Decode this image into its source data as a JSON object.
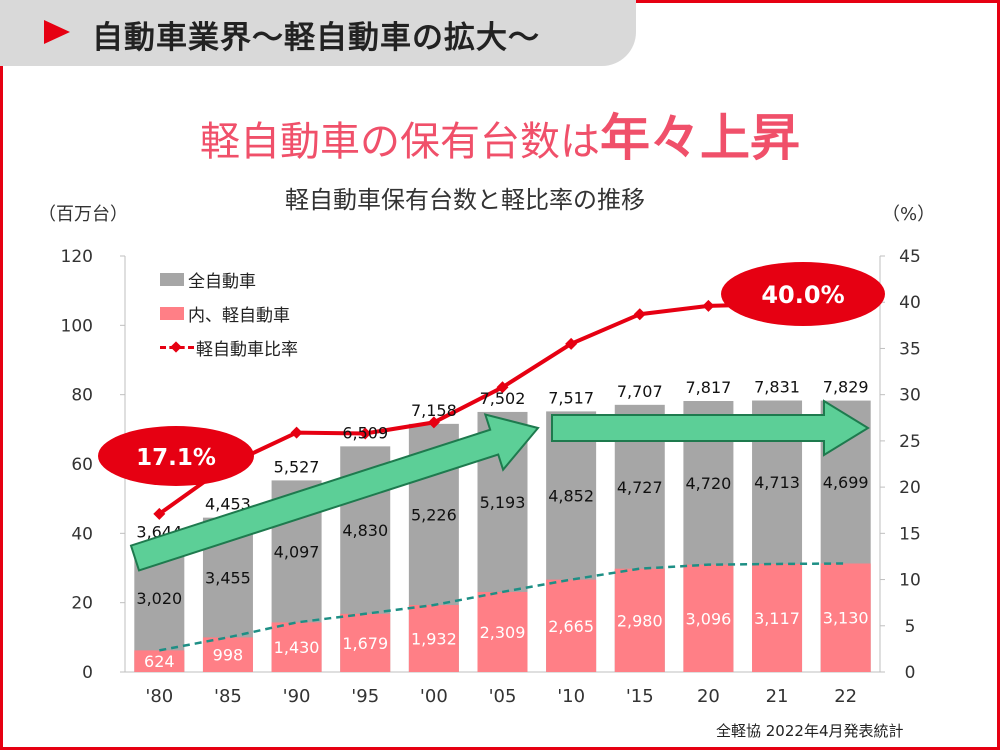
{
  "header": {
    "title": "自動車業界～軽自動車の拡大～"
  },
  "headline": {
    "part1": "軽自動車の保有台数は",
    "part2": "年々上昇"
  },
  "source_note": "全軽協 2022年4月発表統計",
  "colors": {
    "frame": "#e60012",
    "total_bar": "#a6a6a6",
    "kei_bar": "#ff7f86",
    "ratio_line": "#e60012",
    "trend_arrow_fill": "#5ccf97",
    "trend_arrow_stroke": "#1e7a4e",
    "kei_trend_line": "#1e8f85",
    "callout_fill": "#e60012"
  },
  "chart_data": {
    "type": "bar",
    "title": "軽自動車保有台数と軽比率の推移",
    "y_left_unit": "（百万台）",
    "y_right_unit": "（%）",
    "ylim": [
      0,
      120
    ],
    "y_left_ticks": [
      "0",
      "20",
      "40",
      "60",
      "80",
      "100",
      "120"
    ],
    "y2lim": [
      0,
      45
    ],
    "y_right_ticks": [
      "0",
      "5",
      "10",
      "15",
      "20",
      "25",
      "30",
      "35",
      "40",
      "45"
    ],
    "categories": [
      "'80",
      "'85",
      "'90",
      "'95",
      "'00",
      "'05",
      "'10",
      "'15",
      "20",
      "21",
      "22"
    ],
    "legend_position": "top-left",
    "series": [
      {
        "name": "全自動車",
        "kind": "bar",
        "axis": "left",
        "values": [
          36.44,
          44.53,
          55.27,
          65.09,
          71.58,
          75.02,
          75.17,
          77.07,
          78.17,
          78.31,
          78.29
        ],
        "labels": [
          "3,644",
          "4,453",
          "5,527",
          "6,509",
          "7,158",
          "7,502",
          "7,517",
          "7,707",
          "7,817",
          "7,831",
          "7,829"
        ],
        "non_kei_labels": [
          "3,020",
          "3,455",
          "4,097",
          "4,830",
          "5,226",
          "5,193",
          "4,852",
          "4,727",
          "4,720",
          "4,713",
          "4,699"
        ]
      },
      {
        "name": "内、軽自動車",
        "kind": "bar",
        "axis": "left",
        "values": [
          6.24,
          9.98,
          14.3,
          16.79,
          19.32,
          23.09,
          26.65,
          29.8,
          30.96,
          31.17,
          31.3
        ],
        "labels": [
          "624",
          "998",
          "1,430",
          "1,679",
          "1,932",
          "2,309",
          "2,665",
          "2,980",
          "3,096",
          "3,117",
          "3,130"
        ]
      },
      {
        "name": "軽自動車比率",
        "kind": "line",
        "axis": "right",
        "values": [
          17.1,
          22.4,
          25.9,
          25.8,
          27.0,
          30.8,
          35.5,
          38.7,
          39.6,
          39.8,
          40.0
        ]
      }
    ],
    "callouts": [
      "17.1%",
      "40.0%"
    ]
  }
}
